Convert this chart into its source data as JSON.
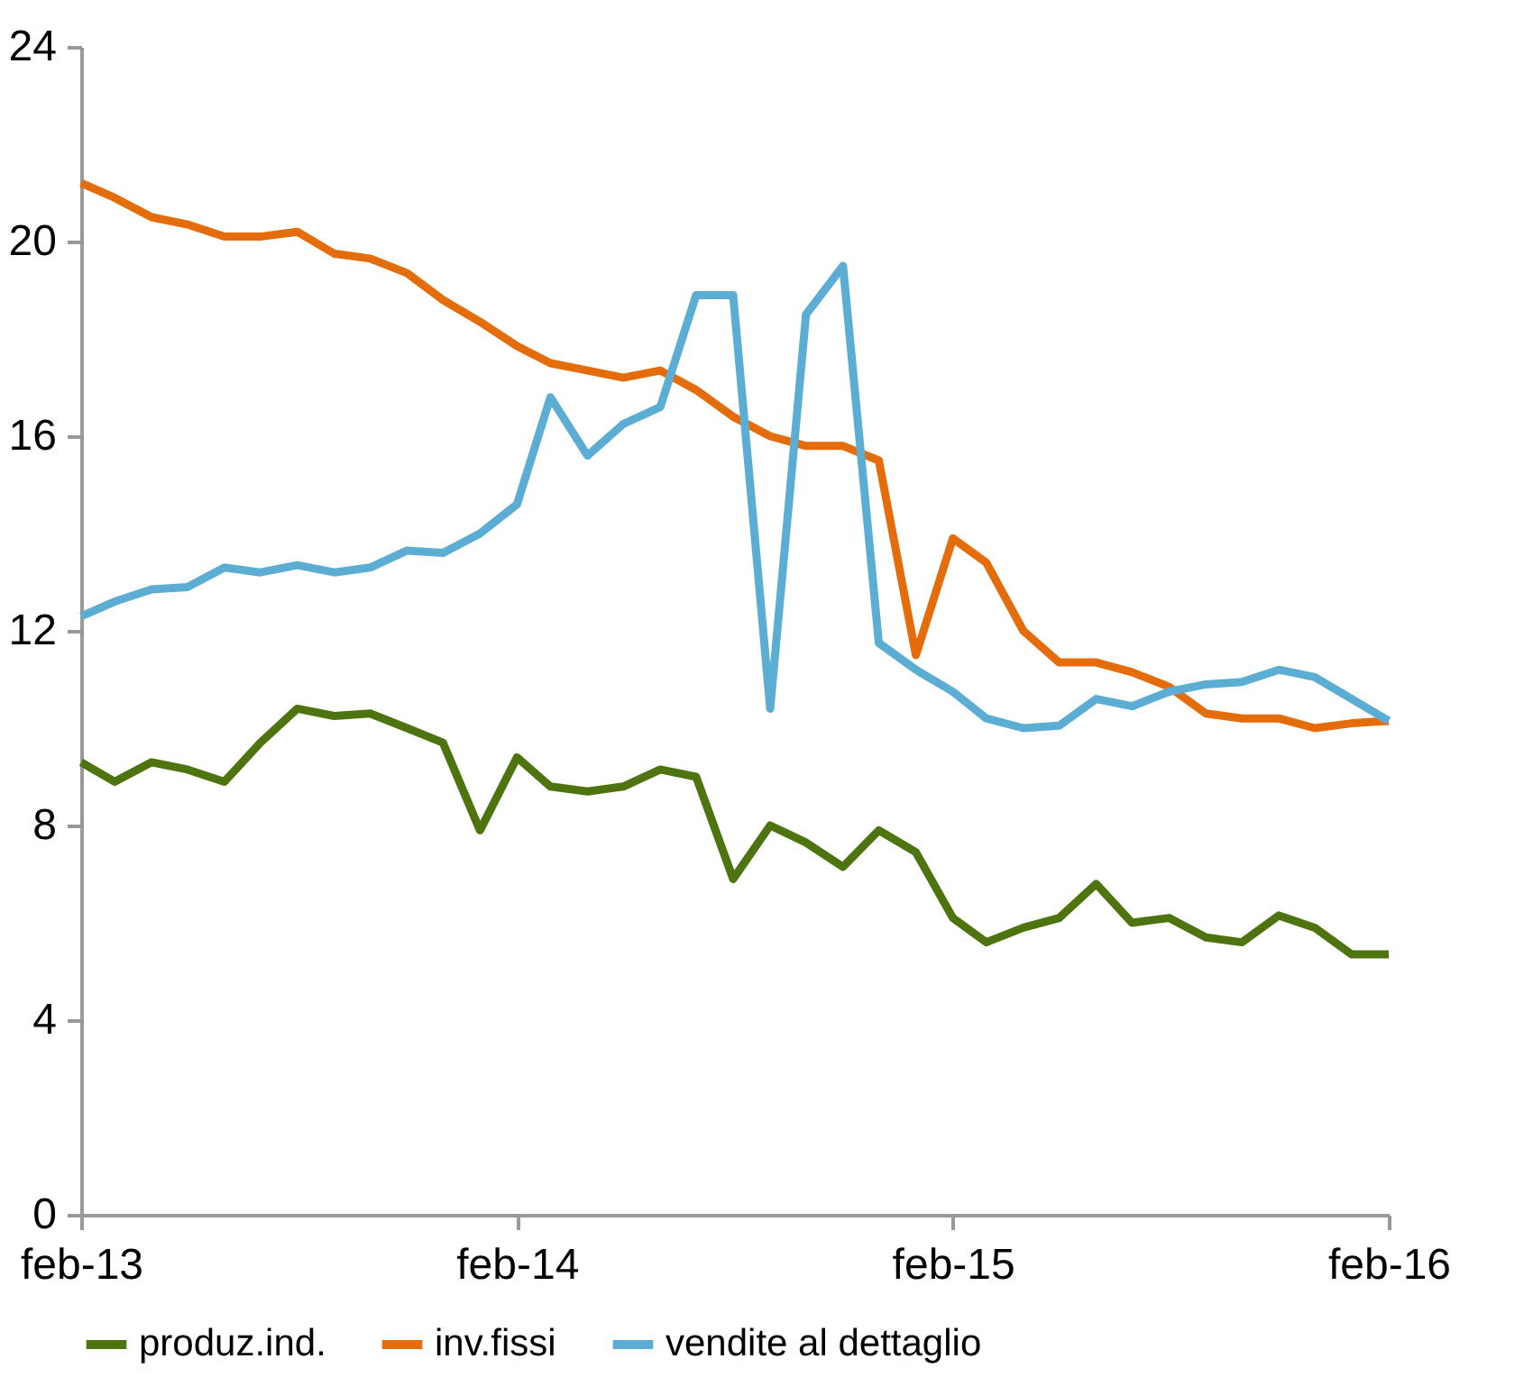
{
  "chart_data": {
    "type": "line",
    "x": [
      "2013-02",
      "2013-03",
      "2013-04",
      "2013-05",
      "2013-06",
      "2013-07",
      "2013-08",
      "2013-09",
      "2013-10",
      "2013-11",
      "2013-12",
      "2014-01",
      "2014-02",
      "2014-03",
      "2014-04",
      "2014-05",
      "2014-06",
      "2014-07",
      "2014-08",
      "2014-09",
      "2014-10",
      "2014-11",
      "2014-12",
      "2015-01",
      "2015-02",
      "2015-03",
      "2015-04",
      "2015-05",
      "2015-06",
      "2015-07",
      "2015-08",
      "2015-09",
      "2015-10",
      "2015-11",
      "2015-12",
      "2016-01",
      "2016-02"
    ],
    "series": [
      {
        "name": "produz.ind.",
        "color": "#4e7410",
        "values": [
          9.3,
          8.9,
          9.3,
          9.15,
          8.9,
          9.7,
          10.4,
          10.25,
          10.3,
          10.0,
          9.7,
          7.9,
          9.4,
          8.8,
          8.7,
          8.8,
          9.15,
          9.0,
          6.9,
          8.0,
          7.65,
          7.15,
          7.9,
          7.45,
          6.1,
          5.6,
          5.9,
          6.1,
          6.8,
          6.0,
          6.1,
          5.7,
          5.6,
          6.15,
          5.9,
          5.35,
          5.35
        ]
      },
      {
        "name": "inv.fissi",
        "color": "#e46c0a",
        "values": [
          21.2,
          20.9,
          20.5,
          20.35,
          20.1,
          20.1,
          20.2,
          19.75,
          19.65,
          19.35,
          18.8,
          18.35,
          17.85,
          17.5,
          17.35,
          17.2,
          17.35,
          16.95,
          16.4,
          16.0,
          15.8,
          15.8,
          15.5,
          11.5,
          13.9,
          13.4,
          12.0,
          11.35,
          11.35,
          11.15,
          10.85,
          10.3,
          10.2,
          10.2,
          10.0,
          10.1,
          10.15
        ]
      },
      {
        "name": "vendite al dettaglio",
        "color": "#5badd4",
        "values": [
          12.3,
          12.6,
          12.85,
          12.9,
          13.3,
          13.2,
          13.35,
          13.2,
          13.3,
          13.65,
          13.6,
          14.0,
          14.6,
          16.8,
          15.6,
          16.25,
          16.6,
          18.9,
          18.9,
          10.4,
          18.5,
          19.5,
          11.75,
          11.2,
          10.75,
          10.2,
          10.0,
          10.05,
          10.6,
          10.45,
          10.75,
          10.9,
          10.95,
          11.2,
          11.05,
          10.6,
          10.15
        ]
      }
    ],
    "xlim": [
      "2013-02",
      "2016-02"
    ],
    "xticks": [
      {
        "value": "2013-02",
        "label": "feb-13"
      },
      {
        "value": "2014-02",
        "label": "feb-14"
      },
      {
        "value": "2015-02",
        "label": "feb-15"
      },
      {
        "value": "2016-02",
        "label": "feb-16"
      }
    ],
    "ylim": [
      0,
      24
    ],
    "yticks": [
      0,
      4,
      8,
      12,
      16,
      20,
      24
    ],
    "grid": false,
    "legend": "bottom",
    "marker": "none",
    "line_style": "solid"
  }
}
